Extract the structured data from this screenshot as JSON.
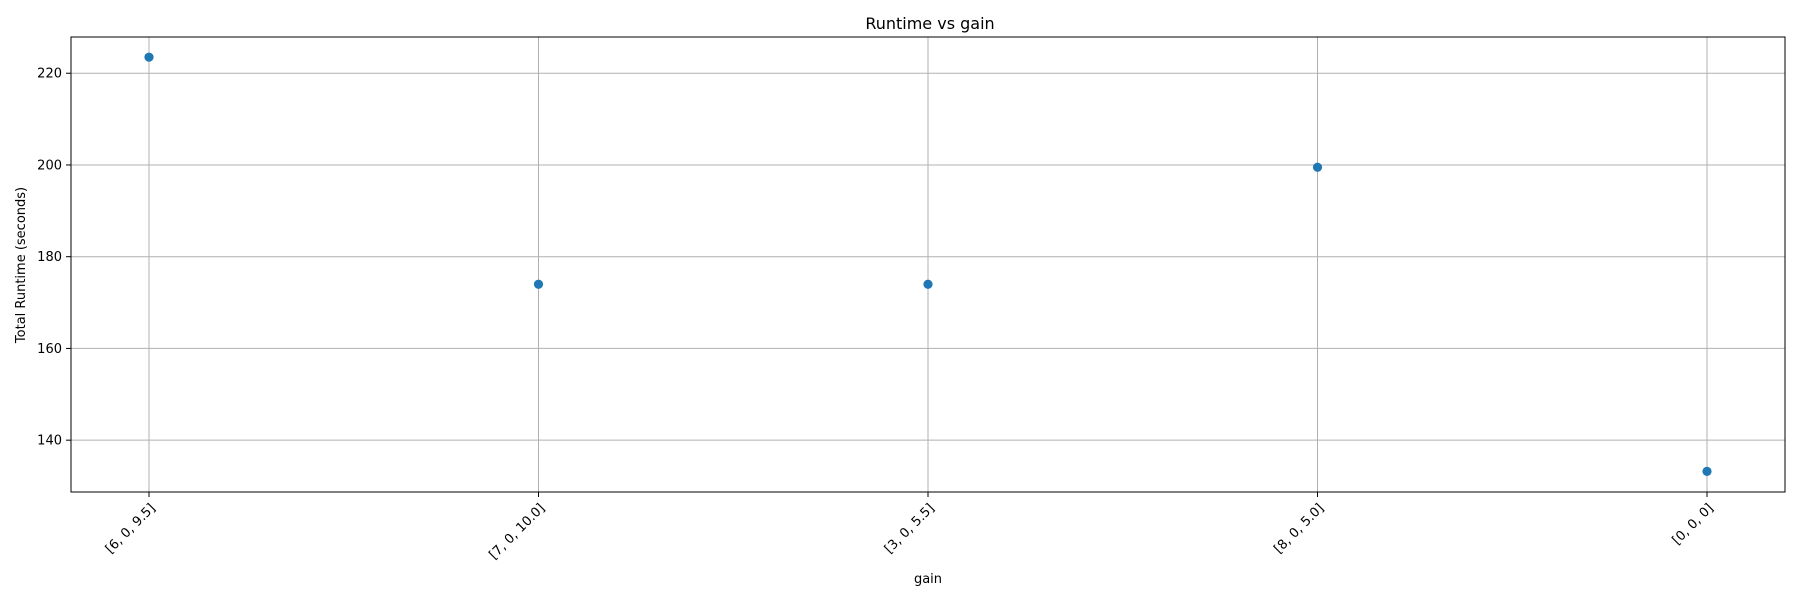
{
  "chart_data": {
    "type": "scatter",
    "title": "Runtime vs gain",
    "xlabel": "gain",
    "ylabel": "Total Runtime (seconds)",
    "categories": [
      "[6, 0, 9.5]",
      "[7, 0, 10.0]",
      "[3, 0, 5.5]",
      "[8, 0, 5.0]",
      "[0, 0, 0]"
    ],
    "values": [
      223.5,
      174.0,
      174.0,
      199.5,
      133.2
    ],
    "ylim": [
      128.7,
      227.9
    ],
    "yticks": [
      140,
      160,
      180,
      200,
      220
    ],
    "xtick_rotation": 45,
    "grid": true,
    "legend": "none",
    "point_color": "#1f77b4"
  }
}
